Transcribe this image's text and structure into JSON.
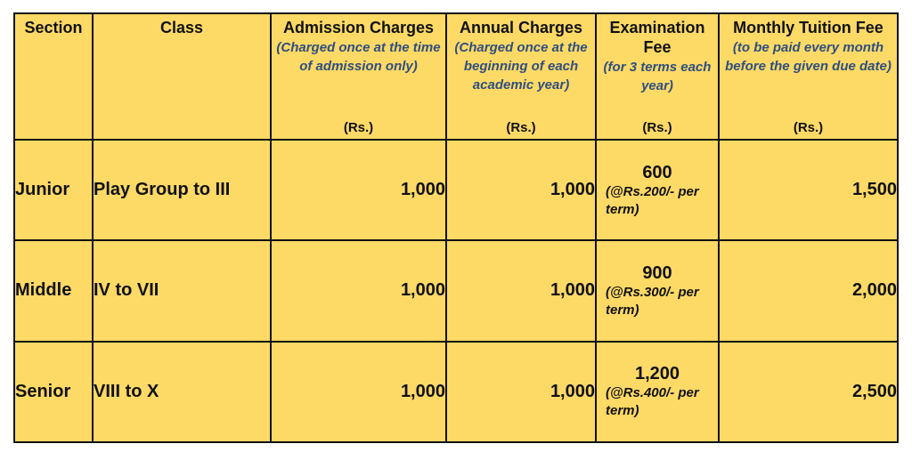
{
  "headers": {
    "section": {
      "title": "Section"
    },
    "class": {
      "title": "Class"
    },
    "admission": {
      "title": "Admission Charges",
      "note": "(Charged once at the time of admission only)",
      "unit": "(Rs.)"
    },
    "annual": {
      "title": "Annual Charges",
      "note": "(Charged once at the beginning of each academic year)",
      "unit": "(Rs.)"
    },
    "exam": {
      "title": "Examination Fee",
      "note": "(for 3 terms each year)",
      "unit": "(Rs.)"
    },
    "monthly": {
      "title": "Monthly Tuition Fee",
      "note": "(to be paid every month before the given due date)",
      "unit": "(Rs.)"
    }
  },
  "rows": [
    {
      "section": "Junior",
      "class": "Play Group to III",
      "admission": "1,000",
      "annual": "1,000",
      "exam_amount": "600",
      "exam_note": "(@Rs.200/- per term)",
      "monthly": "1,500"
    },
    {
      "section": "Middle",
      "class": "IV to VII",
      "admission": "1,000",
      "annual": "1,000",
      "exam_amount": "900",
      "exam_note": "(@Rs.300/- per term)",
      "monthly": "2,000"
    },
    {
      "section": "Senior",
      "class": "VIII to X",
      "admission": "1,000",
      "annual": "1,000",
      "exam_amount": "1,200",
      "exam_note": "(@Rs.400/- per term)",
      "monthly": "2,500"
    }
  ],
  "colors": {
    "cell_background": "#fdd966",
    "note_text": "#2f4f7f",
    "border": "#111111"
  }
}
